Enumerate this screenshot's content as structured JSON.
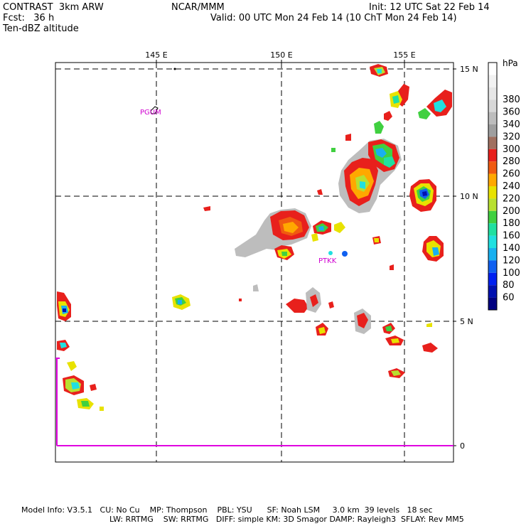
{
  "header": {
    "left_line1": "CONTRAST  3km ARW",
    "left_line2": "Fcst:   36 h",
    "left_line3": "Ten-dBZ altitude",
    "center_line1": "NCAR/MMM",
    "right_line1": "Init: 12 UTC Sat 22 Feb 14",
    "right_line2": "Valid: 00 UTC Mon 24 Feb 14 (10 ChT Mon 24 Feb 14)"
  },
  "map": {
    "lon_labels": [
      "145 E",
      "150 E",
      "155 E"
    ],
    "lat_labels": [
      "15 N",
      "10 N",
      "5 N",
      "0"
    ],
    "stations": [
      {
        "label": "PGUM"
      },
      {
        "label": "PTKK"
      }
    ]
  },
  "legend": {
    "unit": "hPa",
    "levels": [
      {
        "label": "380",
        "color": "#d8d8d8"
      },
      {
        "label": "360",
        "color": "#bdbdbd"
      },
      {
        "label": "340",
        "color": "#9f9f9f"
      },
      {
        "label": "320",
        "color": "#a07060"
      },
      {
        "label": "300",
        "color": "#e8201c"
      },
      {
        "label": "280",
        "color": "#f05a10"
      },
      {
        "label": "260",
        "color": "#ffa800"
      },
      {
        "label": "240",
        "color": "#e8e200"
      },
      {
        "label": "220",
        "color": "#b8e030"
      },
      {
        "label": "200",
        "color": "#40d040"
      },
      {
        "label": "180",
        "color": "#20e0a0"
      },
      {
        "label": "160",
        "color": "#20e0e0"
      },
      {
        "label": "140",
        "color": "#18b0f0"
      },
      {
        "label": "120",
        "color": "#1060f0"
      },
      {
        "label": "100",
        "color": "#0020f0"
      },
      {
        "label": "80",
        "color": "#0010b0"
      },
      {
        "label": "60",
        "color": "#000080"
      }
    ],
    "top_swatches": [
      "#ffffff",
      "#f2f2f2",
      "#e6e6e6"
    ]
  },
  "footer": {
    "line1": "Model Info: V3.5.1   CU: No Cu    MP: Thompson    PBL: YSU      SF: Noah LSM     3.0 km  39 levels   18 sec",
    "line2": "LW: RRTMG    SW: RRTMG   DIFF: simple KM: 3D Smagor DAMP: Rayleigh3  SFLAY: Rev MM5"
  }
}
